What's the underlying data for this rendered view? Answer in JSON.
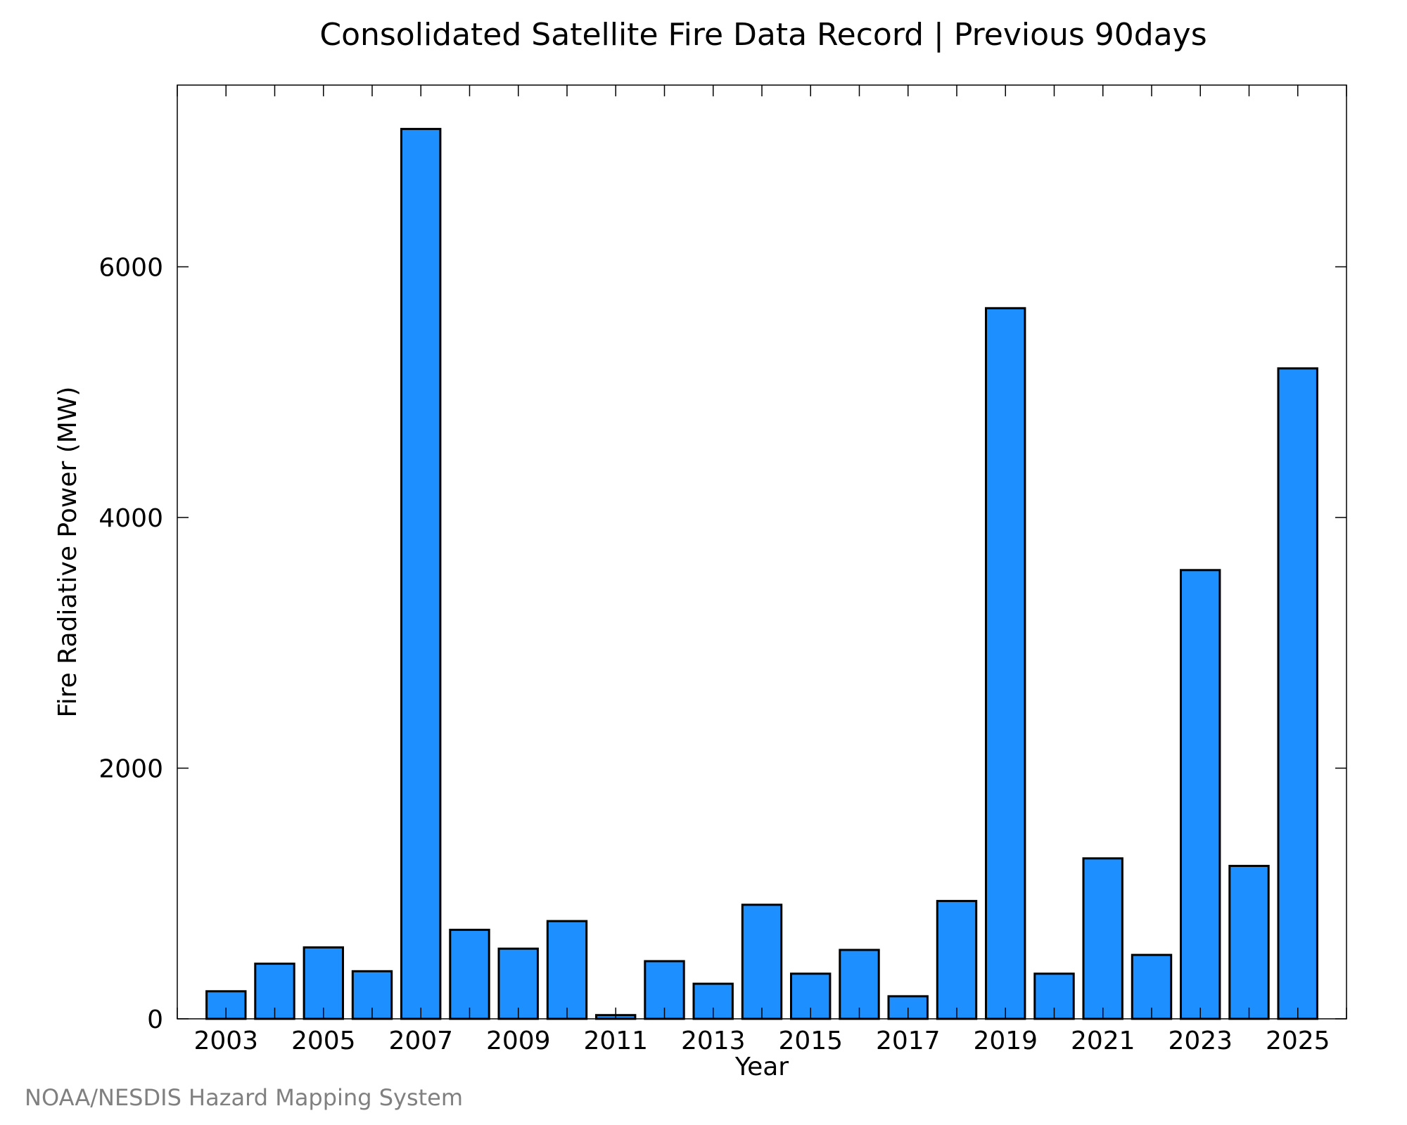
{
  "chart_data": {
    "type": "bar",
    "title": "Consolidated Satellite Fire Data Record | Previous 90days",
    "xlabel": "Year",
    "ylabel": "Fire Radiative Power (MW)",
    "categories": [
      2003,
      2004,
      2005,
      2006,
      2007,
      2008,
      2009,
      2010,
      2011,
      2012,
      2013,
      2014,
      2015,
      2016,
      2017,
      2018,
      2019,
      2020,
      2021,
      2022,
      2023,
      2024,
      2025
    ],
    "values": [
      220,
      440,
      570,
      380,
      7100,
      710,
      560,
      780,
      30,
      460,
      280,
      910,
      360,
      550,
      180,
      940,
      5670,
      360,
      1280,
      510,
      3580,
      1220,
      5190
    ],
    "x_tick_labels": [
      "2003",
      "2005",
      "2007",
      "2009",
      "2011",
      "2013",
      "2015",
      "2017",
      "2019",
      "2021",
      "2023",
      "2025"
    ],
    "y_ticks": [
      0,
      2000,
      4000,
      6000
    ],
    "ylim": [
      0,
      7450
    ],
    "xlim": [
      2002,
      2026
    ],
    "bar_color": "#1e8fff",
    "grid": false,
    "legend": "none"
  },
  "footer": {
    "credit": "NOAA/NESDIS Hazard Mapping System"
  }
}
